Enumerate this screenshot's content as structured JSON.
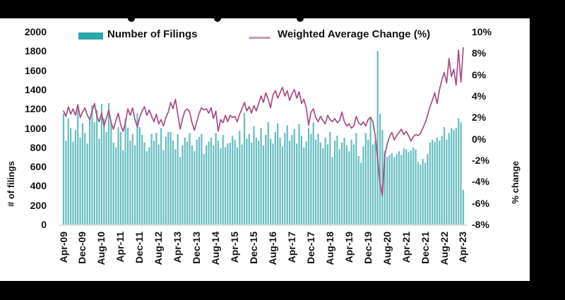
{
  "legend": {
    "bars_label": "Number of Filings",
    "line_label": "Weighted Average Change (%)"
  },
  "y_left_axis": {
    "title": "# of filings",
    "ticks": [
      "2000",
      "1800",
      "1600",
      "1400",
      "1200",
      "1000",
      "800",
      "600",
      "400",
      "200",
      "0"
    ],
    "min": 0,
    "max": 2000,
    "tick_step": 200
  },
  "y_right_axis": {
    "title": "% change",
    "ticks": [
      "10%",
      "8%",
      "6%",
      "4%",
      "2%",
      "0%",
      "-2%",
      "-4%",
      "-6%",
      "-8%"
    ],
    "min": -8,
    "max": 10,
    "tick_step": 2
  },
  "colors": {
    "bar_fill": "#65bdc2",
    "bar_legend": "#2ba6ab",
    "line": "#a84b84",
    "line_legend": "#c998b8",
    "baseline": "#d6d6d6",
    "mask": "#000000",
    "text": "#111111"
  },
  "chart_data": {
    "type": "bar",
    "combo": "bar+line",
    "frequency": "monthly",
    "x_start": "Apr-09",
    "x_end": "Apr-23",
    "x_tick_labels": [
      "Apr-09",
      "Dec-09",
      "Aug-10",
      "Apr-11",
      "Dec-11",
      "Aug-12",
      "Apr-13",
      "Dec-13",
      "Aug-14",
      "Apr-15",
      "Dec-15",
      "Aug-16",
      "Apr-17",
      "Dec-17",
      "Aug-18",
      "Apr-19",
      "Dec-19",
      "Aug-20",
      "Apr-21",
      "Dec-21",
      "Aug-22",
      "Apr-23"
    ],
    "x_tick_interval_months": 8,
    "grid": false,
    "legend_position": "top",
    "series": [
      {
        "name": "Number of Filings",
        "type": "bar",
        "axis": "left",
        "values": [
          1150,
          870,
          1100,
          1000,
          860,
          980,
          1230,
          900,
          1050,
          950,
          840,
          1100,
          1240,
          1060,
          1190,
          890,
          1250,
          1100,
          960,
          1260,
          1060,
          850,
          800,
          1010,
          960,
          770,
          1100,
          1000,
          870,
          940,
          820,
          1150,
          1010,
          930,
          850,
          760,
          800,
          940,
          870,
          950,
          830,
          1000,
          770,
          910,
          960,
          960,
          870,
          780,
          940,
          700,
          820,
          900,
          860,
          950,
          820,
          760,
          880,
          910,
          940,
          730,
          820,
          860,
          900,
          820,
          950,
          870,
          790,
          930,
          800,
          840,
          850,
          920,
          880,
          800,
          970,
          830,
          1160,
          890,
          940,
          850,
          1020,
          900,
          870,
          1000,
          820,
          930,
          1060,
          890,
          840,
          960,
          1050,
          900,
          810,
          950,
          1030,
          870,
          930,
          990,
          840,
          1040,
          920,
          800,
          860,
          1000,
          940,
          1060,
          880,
          940,
          850,
          790,
          900,
          830,
          960,
          700,
          870,
          920,
          780,
          850,
          900,
          820,
          760,
          880,
          830,
          950,
          710,
          640,
          810,
          950,
          880,
          1120,
          830,
          860,
          1800,
          1150,
          980,
          760,
          700,
          720,
          740,
          700,
          730,
          760,
          720,
          790,
          780,
          750,
          770,
          800,
          780,
          650,
          620,
          680,
          640,
          730,
          850,
          880,
          860,
          900,
          870,
          920,
          1010,
          880,
          950,
          1000,
          980,
          1000,
          1100,
          1060,
          360
        ]
      },
      {
        "name": "Weighted Average Change (%)",
        "type": "line",
        "axis": "right",
        "values": [
          2.6,
          2.1,
          3.0,
          2.3,
          2.8,
          2.2,
          3.2,
          2.0,
          2.5,
          2.9,
          2.2,
          1.8,
          2.6,
          3.3,
          2.1,
          1.6,
          2.4,
          1.2,
          1.9,
          2.7,
          1.5,
          0.9,
          1.7,
          2.4,
          1.3,
          0.7,
          1.5,
          2.8,
          2.2,
          2.9,
          1.8,
          1.1,
          2.0,
          2.6,
          3.0,
          2.2,
          2.7,
          2.1,
          1.6,
          2.3,
          1.4,
          1.8,
          1.2,
          2.0,
          2.5,
          3.4,
          2.8,
          3.7,
          2.3,
          0.9,
          1.9,
          2.6,
          2.8,
          2.5,
          1.5,
          0.8,
          1.6,
          2.4,
          2.9,
          2.7,
          2.8,
          2.4,
          2.9,
          1.9,
          2.6,
          0.7,
          1.8,
          1.5,
          2.2,
          1.6,
          2.2,
          2.0,
          2.1,
          1.6,
          2.3,
          2.8,
          3.4,
          2.6,
          3.0,
          2.4,
          3.1,
          2.6,
          3.3,
          4.0,
          3.4,
          4.3,
          3.7,
          2.9,
          4.1,
          4.5,
          3.8,
          4.3,
          4.8,
          4.0,
          4.5,
          3.6,
          4.2,
          4.6,
          3.8,
          4.4,
          3.3,
          3.7,
          2.9,
          1.3,
          2.5,
          2.8,
          2.0,
          1.6,
          2.1,
          1.7,
          1.4,
          2.2,
          1.8,
          1.6,
          1.9,
          1.5,
          1.7,
          2.5,
          1.6,
          1.2,
          1.4,
          1.0,
          1.2,
          2.1,
          1.5,
          1.3,
          1.6,
          1.2,
          1.8,
          2.0,
          1.6,
          0.3,
          -1.8,
          -4.2,
          -5.3,
          -1.5,
          -0.5,
          0.2,
          0.6,
          -0.1,
          0.3,
          0.6,
          0.9,
          0.4,
          0.7,
          0.3,
          -0.2,
          0.2,
          0.4,
          0.3,
          0.5,
          1.0,
          1.5,
          2.2,
          3.0,
          3.6,
          4.3,
          3.3,
          4.6,
          5.5,
          6.2,
          5.2,
          7.5,
          5.8,
          6.5,
          5.0,
          8.3,
          5.3,
          8.5
        ]
      }
    ],
    "left_axis_range": [
      0,
      2000
    ],
    "right_axis_range": [
      -8,
      10
    ]
  }
}
